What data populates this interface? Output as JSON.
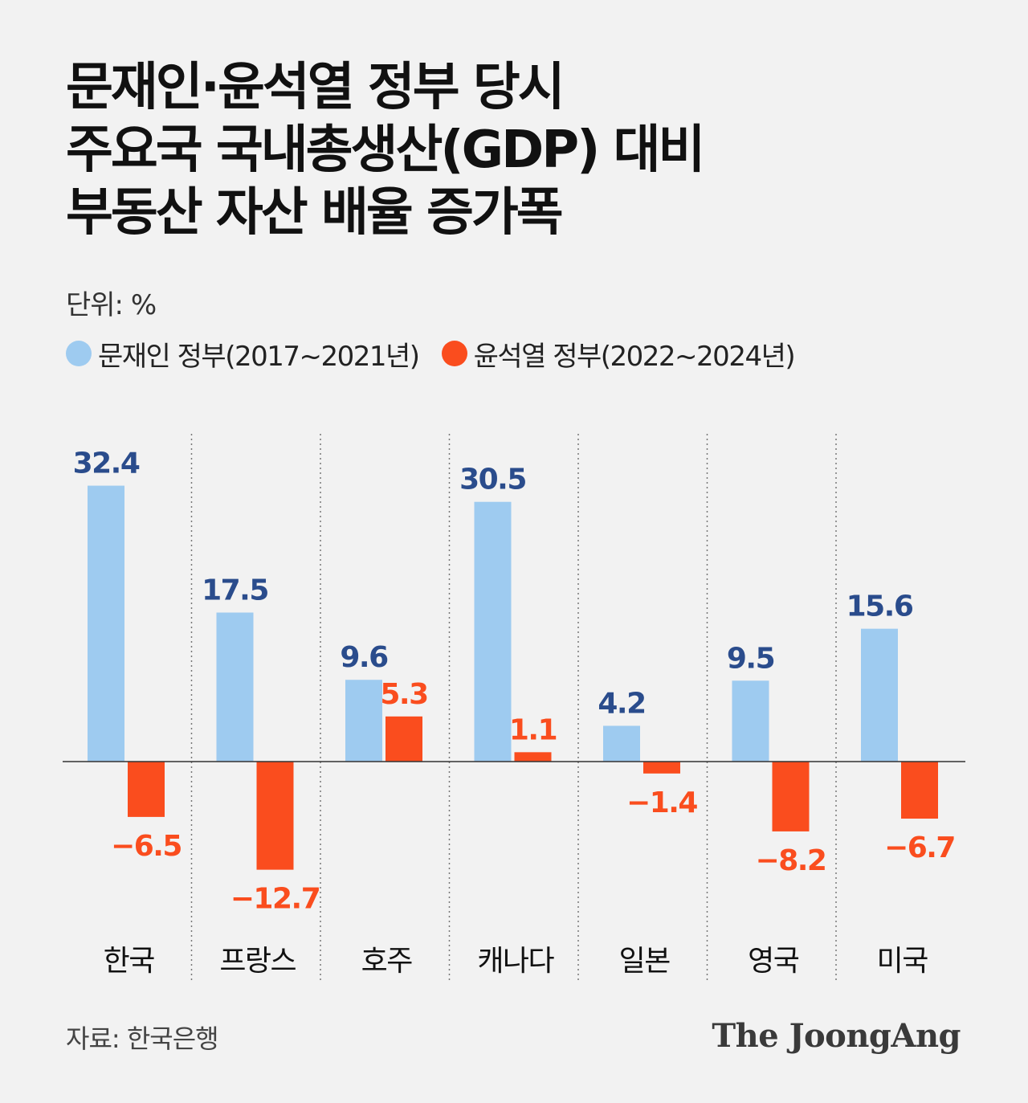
{
  "title": {
    "line1": "문재인·윤석열 정부 당시",
    "line2": "주요국 국내총생산(GDP) 대비",
    "line3": "부동산 자산 배율 증가폭"
  },
  "unit": "단위: %",
  "legend": [
    {
      "label": "문재인 정부(2017~2021년)",
      "color": "#9ecbf0"
    },
    {
      "label": "윤석열 정부(2022~2024년)",
      "color": "#fa4d1e"
    }
  ],
  "source": "자료: 한국은행",
  "logo": "The JoongAng",
  "colors": {
    "moon_bar": "#9ecbf0",
    "moon_label": "#2a4c8c",
    "yoon_bar": "#fa4d1e",
    "yoon_label": "#fa4d1e"
  },
  "chart_data": {
    "type": "bar",
    "categories": [
      "한국",
      "프랑스",
      "호주",
      "캐나다",
      "일본",
      "영국",
      "미국"
    ],
    "series": [
      {
        "name": "문재인 정부(2017~2021년)",
        "values": [
          32.4,
          17.5,
          9.6,
          30.5,
          4.2,
          9.5,
          15.6
        ],
        "labels": [
          "32.4",
          "17.5",
          "9.6",
          "30.5",
          "4.2",
          "9.5",
          "15.6"
        ]
      },
      {
        "name": "윤석열 정부(2022~2024년)",
        "values": [
          -6.5,
          -12.7,
          5.3,
          1.1,
          -1.4,
          -8.2,
          -6.7
        ],
        "labels": [
          "−6.5",
          "−12.7",
          "5.3",
          "1.1",
          "−1.4",
          "−8.2",
          "−6.7"
        ]
      }
    ],
    "grid": false,
    "legend_position": "top-left"
  }
}
